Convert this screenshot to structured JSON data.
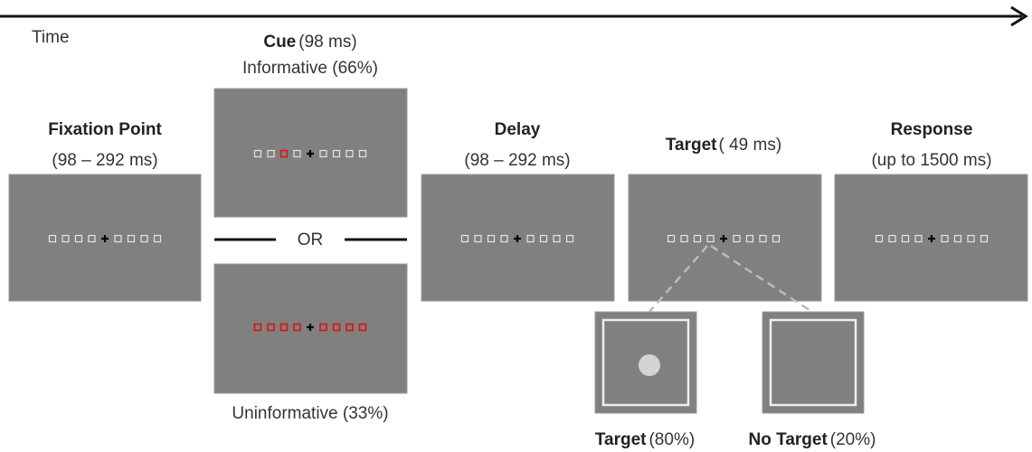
{
  "time_label": "Time",
  "fixation": {
    "title": "Fixation Point",
    "duration": "(98 – 292 ms)"
  },
  "cue": {
    "title": "Cue",
    "duration": "(98 ms)",
    "informative": "Informative (66%)",
    "separator": "OR",
    "uninformative": "Uninformative (33%)"
  },
  "delay": {
    "title": "Delay",
    "duration": "(98 – 292 ms)"
  },
  "target": {
    "title": "Target",
    "duration": "( 49 ms)"
  },
  "response": {
    "title": "Response",
    "duration": "(up to 1500 ms)"
  },
  "outcomes": [
    {
      "title": "Target",
      "probability": "(80%)"
    },
    {
      "title": "No Target",
      "probability": "(20%)"
    }
  ]
}
